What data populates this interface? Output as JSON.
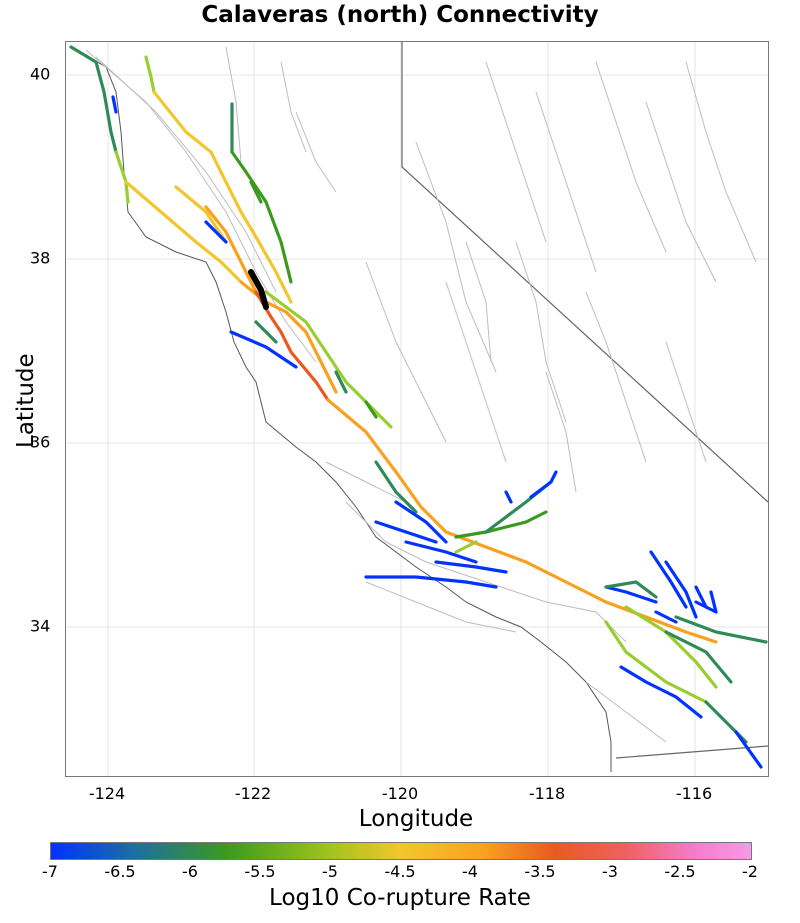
{
  "title": "Calaveras (north) Connectivity",
  "x_axis_label": "Longitude",
  "y_axis_label": "Latitude",
  "x_ticks": [
    "-124",
    "-122",
    "-120",
    "-118",
    "-116"
  ],
  "y_ticks": [
    "40",
    "38",
    "36",
    "34"
  ],
  "colorbar": {
    "label": "Log10 Co-rupture Rate",
    "ticks": [
      "-7",
      "-6.5",
      "-6",
      "-5.5",
      "-5",
      "-4.5",
      "-4",
      "-3.5",
      "-3",
      "-2.5",
      "-2"
    ],
    "range": [
      -7,
      -2
    ]
  },
  "colors": {
    "low": "#0033ff",
    "mid_low": "#2e8b57",
    "mid": "#9acd32",
    "mid_high": "#f2c62c",
    "high": "#f9a11f",
    "very_high": "#e85a20",
    "selected": "#000000",
    "fault_outline": "#bbbbbb",
    "coastline": "#555555"
  }
}
